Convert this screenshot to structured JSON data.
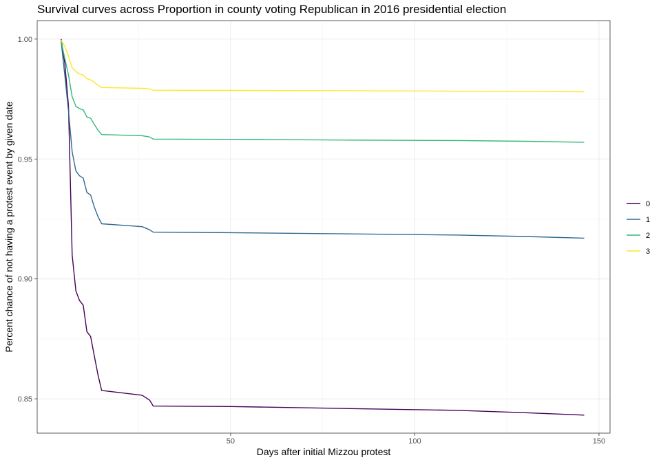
{
  "chart_data": {
    "type": "line",
    "title": "Survival curves across Proportion in county voting Republican in 2016 presidential election",
    "xlabel": "Days after initial Mizzou protest",
    "ylabel": "Percent chance of not having a protest event by given date",
    "xlim": [
      -2.5,
      153
    ],
    "ylim": [
      0.8357,
      1.0077
    ],
    "x_ticks": [
      50,
      100,
      150
    ],
    "y_ticks": [
      0.85,
      0.9,
      0.95,
      1.0
    ],
    "y_tick_labels": [
      "0.85",
      "0.90",
      "0.95",
      "1.00"
    ],
    "grid": true,
    "legend_position": "right",
    "series": [
      {
        "name": "0",
        "color": "#440154",
        "points": [
          [
            4,
            1.0
          ],
          [
            5,
            0.99
          ],
          [
            6,
            0.972
          ],
          [
            7,
            0.91
          ],
          [
            8,
            0.895
          ],
          [
            9,
            0.891
          ],
          [
            10,
            0.889
          ],
          [
            11,
            0.878
          ],
          [
            12,
            0.876
          ],
          [
            13,
            0.868
          ],
          [
            14,
            0.86
          ],
          [
            15,
            0.8535
          ],
          [
            26,
            0.8515
          ],
          [
            28,
            0.8495
          ],
          [
            29,
            0.847
          ],
          [
            50,
            0.8468
          ],
          [
            80,
            0.846
          ],
          [
            112,
            0.8452
          ],
          [
            130,
            0.8442
          ],
          [
            146,
            0.8432
          ]
        ]
      },
      {
        "name": "1",
        "color": "#31688E",
        "points": [
          [
            4,
            0.999
          ],
          [
            5,
            0.985
          ],
          [
            6,
            0.97
          ],
          [
            7,
            0.953
          ],
          [
            8,
            0.945
          ],
          [
            9,
            0.943
          ],
          [
            10,
            0.942
          ],
          [
            11,
            0.936
          ],
          [
            12,
            0.935
          ],
          [
            13,
            0.93
          ],
          [
            14,
            0.926
          ],
          [
            15,
            0.923
          ],
          [
            26,
            0.9218
          ],
          [
            28,
            0.9205
          ],
          [
            29,
            0.9195
          ],
          [
            50,
            0.9193
          ],
          [
            80,
            0.9188
          ],
          [
            112,
            0.9183
          ],
          [
            130,
            0.9177
          ],
          [
            146,
            0.917
          ]
        ]
      },
      {
        "name": "2",
        "color": "#35B779",
        "points": [
          [
            4,
            0.999
          ],
          [
            5,
            0.992
          ],
          [
            6,
            0.985
          ],
          [
            7,
            0.976
          ],
          [
            8,
            0.972
          ],
          [
            9,
            0.971
          ],
          [
            10,
            0.9705
          ],
          [
            11,
            0.9675
          ],
          [
            12,
            0.967
          ],
          [
            13,
            0.9645
          ],
          [
            14,
            0.962
          ],
          [
            15,
            0.9602
          ],
          [
            26,
            0.9597
          ],
          [
            28,
            0.9592
          ],
          [
            29,
            0.9583
          ],
          [
            50,
            0.9582
          ],
          [
            80,
            0.9579
          ],
          [
            112,
            0.9577
          ],
          [
            130,
            0.9574
          ],
          [
            146,
            0.957
          ]
        ]
      },
      {
        "name": "3",
        "color": "#FDE725",
        "points": [
          [
            4,
            0.9995
          ],
          [
            5,
            0.997
          ],
          [
            6,
            0.993
          ],
          [
            7,
            0.988
          ],
          [
            8,
            0.9865
          ],
          [
            9,
            0.9855
          ],
          [
            10,
            0.985
          ],
          [
            11,
            0.9835
          ],
          [
            12,
            0.983
          ],
          [
            13,
            0.982
          ],
          [
            14,
            0.9808
          ],
          [
            15,
            0.9798
          ],
          [
            26,
            0.9795
          ],
          [
            28,
            0.9792
          ],
          [
            29,
            0.9787
          ],
          [
            50,
            0.9786
          ],
          [
            80,
            0.9785
          ],
          [
            112,
            0.9783
          ],
          [
            130,
            0.9782
          ],
          [
            146,
            0.978
          ]
        ]
      }
    ]
  }
}
